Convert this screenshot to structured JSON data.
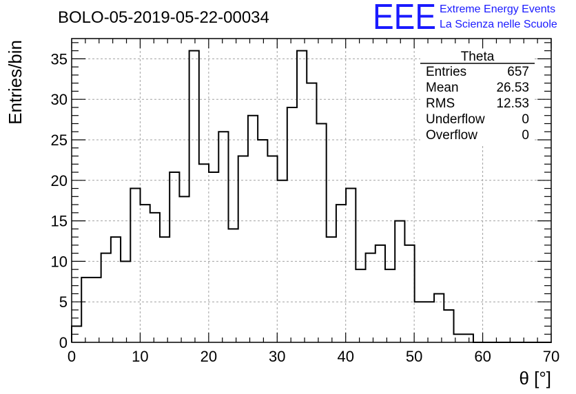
{
  "title": "BOLO-05-2019-05-22-00034",
  "logo": {
    "mark": "EEE",
    "line1": "Extreme Energy Events",
    "line2": "La Scienza nelle Scuole",
    "color": "#1a1aff"
  },
  "stats": {
    "name": "Theta",
    "rows": [
      {
        "label": "Entries",
        "value": "657"
      },
      {
        "label": "Mean",
        "value": "26.53"
      },
      {
        "label": "RMS",
        "value": "12.53"
      },
      {
        "label": "Underflow",
        "value": "0"
      },
      {
        "label": "Overflow",
        "value": "0"
      }
    ]
  },
  "chart_data": {
    "type": "histogram",
    "xlabel": "θ [°]",
    "ylabel": "Entries/bin",
    "xlim": [
      0,
      70
    ],
    "ylim": [
      0,
      37.5
    ],
    "xticks": [
      0,
      10,
      20,
      30,
      40,
      50,
      60,
      70
    ],
    "yticks": [
      0,
      5,
      10,
      15,
      20,
      25,
      30,
      35
    ],
    "grid": true,
    "bin_width": 1.43,
    "bin_edges_start": 0,
    "values": [
      2,
      8,
      8,
      11,
      13,
      10,
      19,
      17,
      16,
      13,
      21,
      18,
      36,
      22,
      21,
      26,
      14,
      23,
      28,
      25,
      23,
      20,
      29,
      36,
      32,
      27,
      13,
      17,
      19,
      9,
      11,
      12,
      9,
      15,
      12,
      5,
      5,
      6,
      4,
      1,
      1,
      0,
      0,
      0,
      0,
      0,
      0,
      0,
      0
    ]
  }
}
